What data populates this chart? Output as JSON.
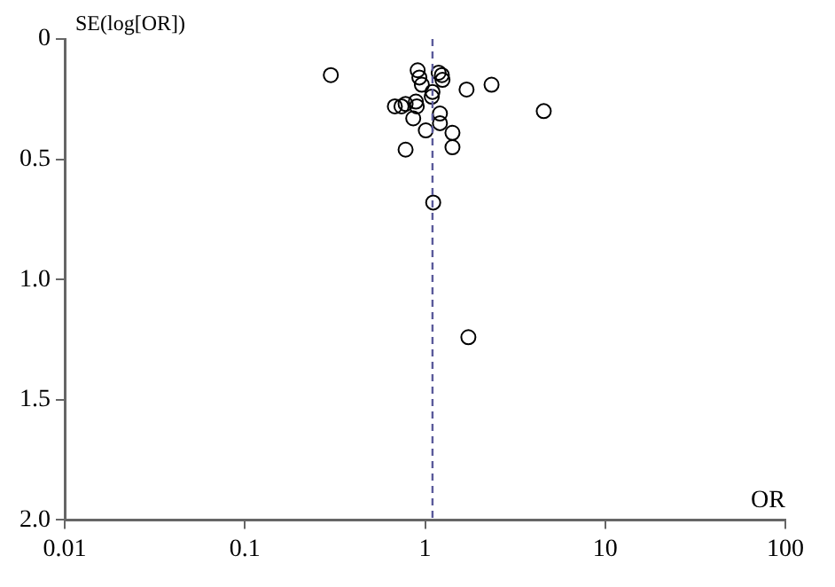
{
  "chart_data": {
    "type": "scatter",
    "xlabel": "OR",
    "ylabel": "SE(log[OR])",
    "log": "x",
    "marker": "circle",
    "grid": false,
    "legend": false,
    "xlim": [
      0.01,
      100
    ],
    "xticks": [
      0.01,
      0.1,
      1,
      10,
      100
    ],
    "ylim": [
      2.0,
      0
    ],
    "yticks": [
      0,
      0.5,
      {
        "value": 1,
        "label": "1.0"
      },
      1.5,
      {
        "value": 2,
        "label": "2.0"
      }
    ],
    "series": [
      {
        "color": "#000000",
        "x": [
          0.3,
          0.91,
          0.93,
          0.96,
          1.19,
          1.24,
          1.25,
          1.1,
          1.09,
          1.7,
          2.34,
          4.56,
          0.68,
          0.74,
          0.78,
          0.89,
          0.9,
          0.86,
          1.01,
          1.21,
          1.21,
          1.42,
          1.42,
          0.78,
          1.11,
          1.74
        ],
        "values": [
          0.15,
          0.13,
          0.16,
          0.19,
          0.14,
          0.15,
          0.17,
          0.22,
          0.24,
          0.21,
          0.19,
          0.3,
          0.28,
          0.28,
          0.27,
          0.26,
          0.28,
          0.33,
          0.38,
          0.31,
          0.35,
          0.39,
          0.45,
          0.46,
          0.68,
          1.24
        ]
      }
    ],
    "ref_lines": [
      {
        "axis": "x",
        "value": 1.1,
        "color": "#5a5a9a",
        "line_style": "dashed"
      }
    ]
  }
}
